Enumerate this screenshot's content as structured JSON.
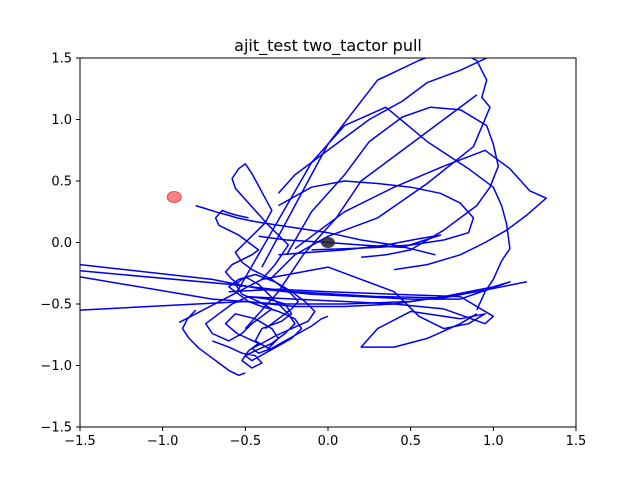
{
  "chart_data": {
    "type": "line",
    "title": "ajit_test two_tactor pull",
    "xlabel": "",
    "ylabel": "",
    "xlim": [
      -1.5,
      1.5
    ],
    "ylim": [
      -1.5,
      1.5
    ],
    "xticks": [
      -1.5,
      -1.0,
      -0.5,
      0.0,
      0.5,
      1.0,
      1.5
    ],
    "yticks": [
      -1.5,
      -1.0,
      -0.5,
      0.0,
      0.5,
      1.0,
      1.5
    ],
    "xtick_labels": [
      "−1.5",
      "−1.0",
      "−0.5",
      "0.0",
      "0.5",
      "1.0",
      "1.5"
    ],
    "ytick_labels": [
      "−1.5",
      "−1.0",
      "−0.5",
      "0.0",
      "0.5",
      "1.0",
      "1.5"
    ],
    "grid": false,
    "legend": "none",
    "series": [
      {
        "color": "#0000ee",
        "x": [
          -0.7,
          -0.6,
          -0.52,
          -0.44,
          -0.4,
          -0.46,
          -0.52,
          -0.48,
          -0.42,
          -0.55,
          -0.62,
          -0.56,
          -0.44,
          -0.34,
          -0.3,
          -0.36,
          -0.44,
          -0.4,
          -0.28,
          -0.22,
          -0.26,
          -0.36,
          -0.48,
          -0.58,
          -0.66,
          -0.74,
          -0.7,
          -0.6,
          -0.52,
          -0.46,
          -0.4,
          -0.34,
          -0.42,
          -0.52,
          -0.56,
          -0.5,
          -0.42,
          -0.36,
          -0.3,
          -0.24,
          -0.2,
          -0.26,
          -0.34,
          -0.44,
          -0.5,
          -0.46,
          -0.38,
          -0.3,
          -0.22,
          -0.16,
          -0.2,
          -0.3,
          -0.4,
          -0.48,
          -0.54,
          -0.6,
          -0.54,
          -0.44,
          -0.32,
          -0.22,
          -0.14,
          -0.08,
          -0.12,
          -0.22,
          -0.32,
          -0.4,
          -0.46,
          -0.42,
          -0.34,
          -0.26,
          -0.18,
          -0.1,
          -0.04,
          0.0
        ],
        "y": [
          -0.8,
          -0.85,
          -0.9,
          -0.92,
          -0.98,
          -1.02,
          -0.96,
          -0.88,
          -0.82,
          -0.74,
          -0.66,
          -0.58,
          -0.62,
          -0.7,
          -0.78,
          -0.86,
          -0.8,
          -0.7,
          -0.64,
          -0.58,
          -0.5,
          -0.46,
          -0.44,
          -0.5,
          -0.58,
          -0.66,
          -0.74,
          -0.8,
          -0.74,
          -0.66,
          -0.6,
          -0.54,
          -0.48,
          -0.42,
          -0.34,
          -0.28,
          -0.34,
          -0.42,
          -0.5,
          -0.58,
          -0.66,
          -0.74,
          -0.82,
          -0.88,
          -0.92,
          -0.96,
          -0.9,
          -0.84,
          -0.78,
          -0.7,
          -0.62,
          -0.56,
          -0.52,
          -0.48,
          -0.42,
          -0.36,
          -0.3,
          -0.26,
          -0.32,
          -0.4,
          -0.48,
          -0.56,
          -0.64,
          -0.7,
          -0.76,
          -0.82,
          -0.86,
          -0.9,
          -0.86,
          -0.8,
          -0.74,
          -0.68,
          -0.62,
          -0.6
        ]
      },
      {
        "color": "#0000ee",
        "x": [
          -0.4,
          -0.36,
          -0.32,
          -0.28,
          -0.24,
          -0.3,
          -0.36,
          -0.4,
          -0.44,
          -0.48,
          -0.52,
          -0.56,
          -0.58,
          -0.54,
          -0.5,
          -0.46,
          -0.42,
          -0.38,
          -0.34,
          -0.38,
          -0.44,
          -0.5,
          -0.56,
          -0.52,
          -0.46,
          -0.4,
          -0.34,
          -0.28,
          -0.22,
          -0.18,
          -0.22,
          -0.28,
          -0.34,
          -0.38
        ],
        "y": [
          -0.3,
          -0.24,
          -0.18,
          -0.1,
          -0.02,
          0.06,
          0.14,
          0.2,
          0.26,
          0.32,
          0.38,
          0.44,
          0.52,
          0.6,
          0.64,
          0.56,
          0.46,
          0.36,
          0.26,
          0.16,
          0.08,
          0.0,
          -0.08,
          -0.16,
          -0.22,
          -0.26,
          -0.3,
          -0.36,
          -0.42,
          -0.48,
          -0.54,
          -0.6,
          -0.66,
          -0.7
        ]
      },
      {
        "color": "#0000ee",
        "x": [
          -0.48,
          -0.55,
          -0.6,
          -0.64,
          -0.68,
          -0.66,
          -0.6,
          -0.54,
          -0.5,
          -0.46,
          -0.42,
          -0.46,
          -0.52,
          -0.58,
          -0.62,
          -0.58,
          -0.52
        ],
        "y": [
          0.2,
          0.22,
          0.24,
          0.26,
          0.2,
          0.14,
          0.1,
          0.06,
          0.02,
          -0.02,
          -0.06,
          -0.1,
          -0.14,
          -0.18,
          -0.24,
          -0.3,
          -0.36
        ]
      },
      {
        "color": "#0000ee",
        "x": [
          -1.5,
          -0.7,
          -0.4,
          -0.1,
          0.2,
          0.5,
          0.8,
          1.1,
          1.0,
          0.7,
          0.4,
          0.1,
          -0.2,
          -0.5,
          -1.5
        ],
        "y": [
          -0.18,
          -0.3,
          -0.38,
          -0.42,
          -0.44,
          -0.46,
          -0.46,
          -0.32,
          -0.36,
          -0.44,
          -0.5,
          -0.52,
          -0.52,
          -0.48,
          -0.55
        ]
      },
      {
        "color": "#0000ee",
        "x": [
          -1.5,
          -0.6,
          -0.2,
          0.3,
          0.7,
          1.05,
          1.2,
          0.9,
          0.5,
          0.1,
          -0.3,
          -0.7,
          -1.5
        ],
        "y": [
          -0.23,
          -0.34,
          -0.4,
          -0.44,
          -0.45,
          -0.36,
          -0.32,
          -0.4,
          -0.48,
          -0.5,
          -0.5,
          -0.46,
          -0.28
        ]
      },
      {
        "color": "#0000ee",
        "x": [
          -0.6,
          -0.3,
          0.0,
          0.4,
          0.8,
          1.0,
          0.95,
          0.7,
          0.4,
          0.1,
          -0.2,
          -0.5
        ],
        "y": [
          -0.4,
          -0.38,
          -0.4,
          -0.42,
          -0.44,
          -0.6,
          -0.66,
          -0.54,
          -0.5,
          -0.48,
          -0.46,
          -0.44
        ]
      },
      {
        "color": "#0000ee",
        "x": [
          -0.9,
          -0.4,
          0.0,
          0.4,
          0.55,
          0.7,
          0.85,
          0.95,
          0.8,
          0.5,
          0.3,
          0.2,
          0.4,
          0.6,
          0.8,
          0.9
        ],
        "y": [
          -0.65,
          -0.3,
          -0.2,
          -0.4,
          -0.6,
          -0.7,
          -0.66,
          -0.58,
          -0.62,
          -0.56,
          -0.7,
          -0.85,
          -0.85,
          -0.78,
          -0.66,
          -0.58
        ]
      },
      {
        "color": "#0000ee",
        "x": [
          -0.5,
          -0.3,
          -0.15,
          0.05,
          0.2,
          0.5,
          0.7,
          0.9
        ],
        "y": [
          -0.7,
          -0.4,
          -0.1,
          0.2,
          0.5,
          0.8,
          1.0,
          1.2
        ]
      },
      {
        "color": "#0000ee",
        "x": [
          -0.55,
          -0.4,
          -0.25,
          -0.1,
          0.1,
          0.35,
          0.6,
          0.85,
          1.0,
          1.05,
          1.08,
          1.1,
          1.05,
          1.0,
          0.95,
          0.9
        ],
        "y": [
          -0.4,
          -0.05,
          0.3,
          0.65,
          0.95,
          1.1,
          0.82,
          0.6,
          0.45,
          0.3,
          0.15,
          -0.05,
          -0.15,
          -0.3,
          -0.4,
          -0.55
        ]
      },
      {
        "color": "#0000ee",
        "x": [
          -0.4,
          -0.2,
          0.0,
          0.3,
          0.55,
          0.75,
          0.9,
          0.96,
          0.93,
          0.98,
          0.88,
          0.6,
          0.3,
          0.0,
          -0.2,
          -0.35
        ],
        "y": [
          -0.2,
          0.3,
          0.8,
          1.32,
          1.48,
          1.58,
          1.48,
          1.32,
          1.18,
          1.1,
          0.78,
          0.48,
          0.2,
          0.05,
          -0.1,
          -0.3
        ]
      },
      {
        "color": "#0000ee",
        "x": [
          -0.25,
          -0.1,
          0.1,
          0.25,
          0.45,
          0.62,
          0.8,
          0.96,
          1.0,
          1.03,
          0.98,
          0.9,
          0.8,
          0.7,
          0.6,
          0.5,
          0.35,
          0.2
        ],
        "y": [
          -0.1,
          0.25,
          0.55,
          0.82,
          1.02,
          1.1,
          1.08,
          0.95,
          0.8,
          0.62,
          0.45,
          0.3,
          0.2,
          0.1,
          0.02,
          -0.06,
          -0.1,
          -0.12
        ]
      },
      {
        "color": "#0000ee",
        "x": [
          -0.2,
          0.1,
          0.4,
          0.7,
          0.95,
          1.1,
          1.22,
          1.32,
          1.2,
          1.08,
          0.95,
          0.8,
          0.6,
          0.4
        ],
        "y": [
          -0.05,
          0.25,
          0.45,
          0.62,
          0.75,
          0.6,
          0.42,
          0.36,
          0.22,
          0.1,
          0.0,
          -0.1,
          -0.18,
          -0.22
        ]
      },
      {
        "color": "#0000ee",
        "x": [
          -0.3,
          -0.1,
          0.1,
          0.3,
          0.5,
          0.68,
          0.8,
          0.88,
          0.85,
          0.7,
          0.5,
          0.3,
          0.1,
          -0.1
        ],
        "y": [
          0.3,
          0.45,
          0.5,
          0.48,
          0.45,
          0.4,
          0.32,
          0.2,
          0.08,
          0.02,
          -0.02,
          -0.04,
          -0.05,
          -0.06
        ]
      },
      {
        "color": "#0000ee",
        "x": [
          -0.42,
          -0.25,
          0.0,
          0.2,
          0.45,
          0.68,
          0.55,
          0.35,
          0.1,
          -0.1,
          -0.3
        ],
        "y": [
          0.05,
          0.02,
          0.0,
          -0.02,
          -0.04,
          0.06,
          0.03,
          -0.02,
          -0.06,
          -0.08,
          -0.1
        ]
      },
      {
        "color": "#0000ee",
        "x": [
          -0.8,
          -0.75,
          -0.68,
          -0.6,
          -0.55,
          -0.48,
          -0.4,
          -0.3,
          -0.2,
          -0.1,
          0.0,
          0.1,
          0.2,
          0.3,
          0.4,
          0.5,
          0.65
        ],
        "y": [
          0.3,
          0.28,
          0.25,
          0.22,
          0.2,
          0.18,
          0.16,
          0.14,
          0.12,
          0.1,
          0.08,
          0.05,
          0.02,
          0.0,
          -0.02,
          -0.05,
          -0.1
        ]
      },
      {
        "color": "#0000ee",
        "x": [
          -0.3,
          -0.2,
          -0.05,
          0.1,
          0.25,
          0.45,
          0.6,
          0.8,
          0.96
        ],
        "y": [
          0.4,
          0.55,
          0.7,
          0.85,
          1.0,
          1.15,
          1.3,
          1.4,
          1.5
        ]
      },
      {
        "color": "#0000ee",
        "x": [
          -0.8,
          -0.85,
          -0.88,
          -0.84,
          -0.78,
          -0.72,
          -0.66,
          -0.6,
          -0.54,
          -0.5
        ],
        "y": [
          -0.55,
          -0.62,
          -0.7,
          -0.78,
          -0.86,
          -0.92,
          -0.98,
          -1.04,
          -1.08,
          -1.06
        ]
      }
    ],
    "markers": [
      {
        "x": -0.93,
        "y": 0.37,
        "color": "#ee3030",
        "label": "red-target-dot"
      },
      {
        "x": 0.0,
        "y": 0.0,
        "color": "#202020",
        "label": "origin-dot"
      }
    ]
  }
}
